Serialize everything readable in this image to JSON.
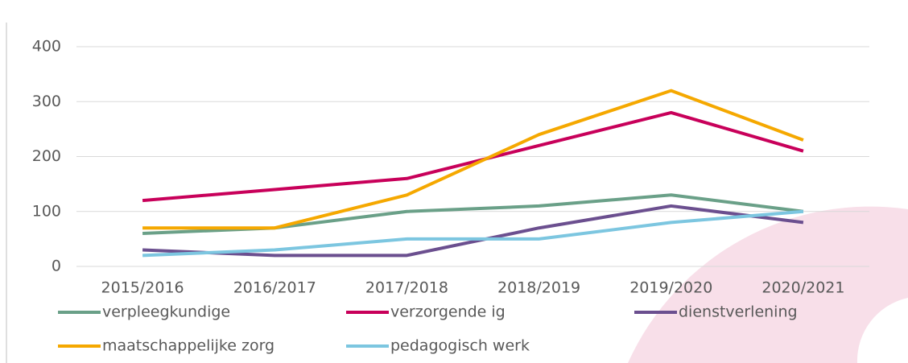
{
  "chart_data": {
    "type": "line",
    "categories": [
      "2015/2016",
      "2016/2017",
      "2017/2018",
      "2018/2019",
      "2019/2020",
      "2020/2021"
    ],
    "series": [
      {
        "name": "verpleegkundige",
        "color": "#6aa088",
        "values": [
          60,
          70,
          100,
          110,
          130,
          100
        ]
      },
      {
        "name": "verzorgende ig",
        "color": "#c8005a",
        "values": [
          120,
          140,
          160,
          220,
          280,
          210
        ]
      },
      {
        "name": "dienstverlening",
        "color": "#6b4f8f",
        "values": [
          30,
          20,
          20,
          70,
          110,
          80
        ]
      },
      {
        "name": "maatschappelijke zorg",
        "color": "#f5a800",
        "values": [
          70,
          70,
          130,
          240,
          320,
          230
        ]
      },
      {
        "name": "pedagogisch werk",
        "color": "#7cc6e0",
        "values": [
          20,
          30,
          50,
          50,
          80,
          100
        ]
      }
    ],
    "ylim": [
      0,
      400
    ],
    "yticks": [
      0,
      100,
      200,
      300,
      400
    ],
    "grid": true,
    "legend": "bottom"
  }
}
